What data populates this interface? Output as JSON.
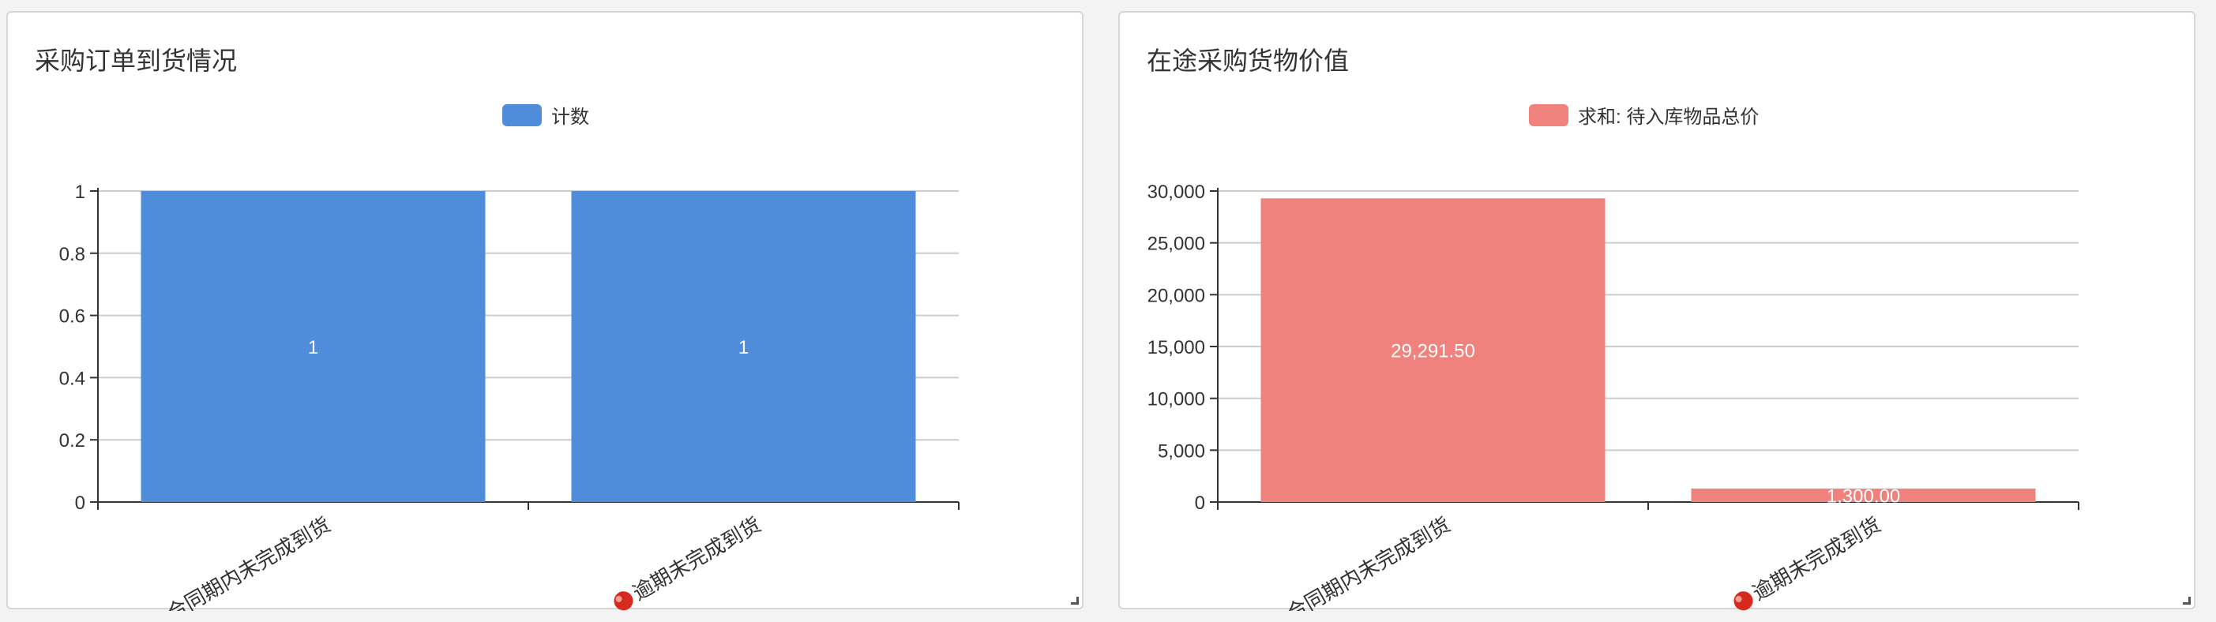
{
  "chart_data": [
    {
      "type": "bar",
      "title": "采购订单到货情况",
      "categories": [
        "合同期内未完成到货",
        "逾期未完成到货"
      ],
      "category_icons": [
        "",
        "red-ball-icon"
      ],
      "series": [
        {
          "name": "计数",
          "values": [
            1,
            1
          ],
          "color": "#4f8ddb",
          "data_labels": [
            "1",
            "1"
          ]
        }
      ],
      "ylim": [
        0,
        1
      ],
      "yticks": [
        "0",
        "0.2",
        "0.4",
        "0.6",
        "0.8",
        "1"
      ],
      "ytick_values": [
        0,
        0.2,
        0.4,
        0.6,
        0.8,
        1
      ],
      "grid": true,
      "legend_position": "top-center"
    },
    {
      "type": "bar",
      "title": "在途采购货物价值",
      "categories": [
        "合同期内未完成到货",
        "逾期未完成到货"
      ],
      "category_icons": [
        "",
        "red-ball-icon"
      ],
      "series": [
        {
          "name": "求和: 待入库物品总价",
          "values": [
            29291.5,
            1300
          ],
          "color": "#f0827e",
          "data_labels": [
            "29,291.50",
            "1,300.00"
          ]
        }
      ],
      "ylim": [
        0,
        30000
      ],
      "yticks": [
        "0",
        "5,000",
        "10,000",
        "15,000",
        "20,000",
        "25,000",
        "30,000"
      ],
      "ytick_values": [
        0,
        5000,
        10000,
        15000,
        20000,
        25000,
        30000
      ],
      "grid": true,
      "legend_position": "top-center"
    }
  ]
}
